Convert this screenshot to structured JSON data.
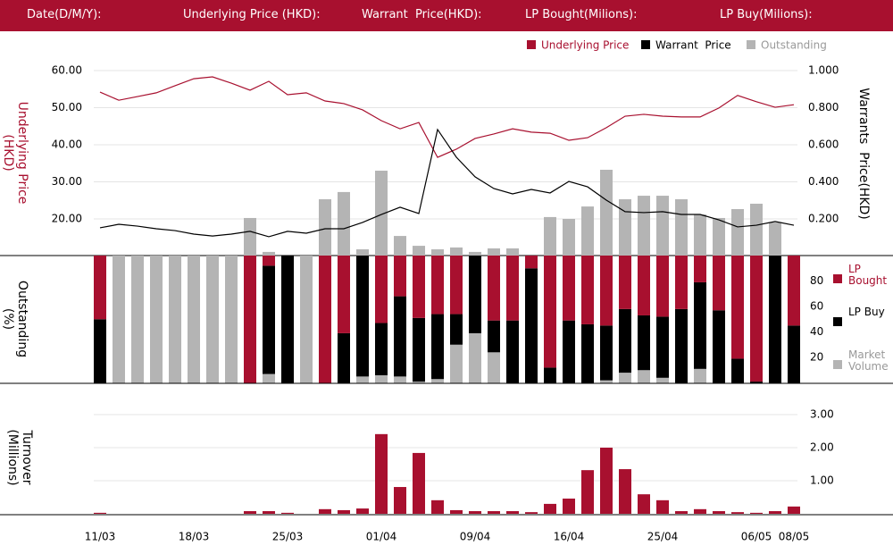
{
  "header": {
    "fields": [
      "Date(D/M/Y):",
      "Underlying Price (HKD):",
      "Warrant  Price(HKD):",
      "LP Bought(Milions):",
      "LP Buy(Milions):"
    ]
  },
  "chart_data": [
    {
      "type": "line",
      "y_title": "Underlying Price (HKD)",
      "y2_title": "Warrants  Price(HKD)",
      "ylim": [
        10,
        64.5
      ],
      "yticks": [
        {
          "value": 20,
          "label": "20.00"
        },
        {
          "value": 30,
          "label": "30.00"
        },
        {
          "value": 40,
          "label": "40.00"
        },
        {
          "value": 50,
          "label": "50.00"
        },
        {
          "value": 60,
          "label": "60.00"
        }
      ],
      "y2lim": [
        0,
        1.09
      ],
      "y2ticks": [
        {
          "value": 0.2,
          "label": "0.200"
        },
        {
          "value": 0.4,
          "label": "0.400"
        },
        {
          "value": 0.6,
          "label": "0.600"
        },
        {
          "value": 0.8,
          "label": "0.800"
        },
        {
          "value": 1,
          "label": "1.000"
        }
      ],
      "grid": true,
      "legend": "top-right",
      "series": [
        {
          "name": "Underlying Price",
          "color": "#a8102f",
          "values": [
            54.2,
            52.0,
            53.0,
            54.0,
            55.9,
            57.8,
            58.3,
            56.6,
            54.7,
            57.1,
            53.5,
            54.0,
            51.8,
            51.1,
            49.4,
            46.5,
            44.3,
            46.0,
            36.6,
            38.8,
            41.7,
            42.9,
            44.3,
            43.4,
            43.1,
            41.2,
            41.9,
            44.6,
            47.7,
            48.2,
            47.7,
            47.5,
            47.5,
            49.9,
            53.3,
            51.6,
            50.1,
            50.8
          ]
        },
        {
          "name": "Warrant  Price",
          "color": "#000000",
          "axis": "y2",
          "values": [
            0.152,
            0.171,
            0.161,
            0.147,
            0.137,
            0.118,
            0.108,
            0.118,
            0.133,
            0.104,
            0.133,
            0.123,
            0.147,
            0.147,
            0.181,
            0.224,
            0.263,
            0.229,
            0.682,
            0.533,
            0.427,
            0.364,
            0.335,
            0.359,
            0.34,
            0.402,
            0.373,
            0.301,
            0.239,
            0.234,
            0.239,
            0.224,
            0.224,
            0.195,
            0.157,
            0.166,
            0.186,
            0.166
          ]
        },
        {
          "name": "Outstanding",
          "color": "#b4b4b4",
          "type": "bar",
          "axis": "y2",
          "values": [
            null,
            null,
            null,
            null,
            null,
            null,
            null,
            null,
            0.205,
            0.022,
            null,
            null,
            0.306,
            0.345,
            0.036,
            0.46,
            0.108,
            0.055,
            0.036,
            0.046,
            0.022,
            0.041,
            0.041,
            null,
            0.21,
            0.2,
            0.267,
            0.465,
            0.306,
            0.325,
            0.325,
            0.306,
            0.224,
            0.205,
            0.253,
            0.282,
            0.181,
            null
          ]
        }
      ]
    },
    {
      "type": "bar",
      "stacked": true,
      "y_title": "Outstanding (%)",
      "ylim": [
        0,
        100
      ],
      "yticks": [
        20,
        40,
        60,
        80
      ],
      "yaxis_position": "right",
      "legend": "right",
      "series": [
        {
          "name": "LP Bought",
          "color": "#a8102f",
          "values": [
            50,
            0,
            0,
            0,
            0,
            0,
            0,
            0,
            100,
            8,
            0,
            0,
            100,
            61,
            0,
            53,
            32,
            49,
            46,
            46,
            0,
            51,
            51,
            10,
            88,
            51,
            54,
            55,
            42,
            47,
            48,
            42,
            21,
            43,
            81,
            99,
            0,
            55
          ]
        },
        {
          "name": "LP Buy",
          "color": "#000000",
          "values": [
            50,
            0,
            0,
            0,
            0,
            0,
            0,
            0,
            0,
            85,
            100,
            0,
            0,
            39,
            95,
            41,
            63,
            50,
            51,
            24,
            61,
            25,
            49,
            90,
            12,
            49,
            46,
            43,
            50,
            43,
            48,
            58,
            68,
            57,
            19,
            1,
            100,
            45
          ]
        },
        {
          "name": "Market Volume",
          "color": "#b4b4b4",
          "values": [
            0,
            100,
            100,
            100,
            100,
            100,
            100,
            100,
            0,
            7,
            0,
            100,
            0,
            0,
            5,
            6,
            5,
            1,
            3,
            30,
            39,
            24,
            0,
            0,
            0,
            0,
            0,
            2,
            8,
            10,
            4,
            0,
            11,
            0,
            0,
            0,
            0,
            0
          ]
        }
      ]
    },
    {
      "type": "bar",
      "y_title": "Turnover (Millions)",
      "ylim": [
        0,
        3.4
      ],
      "yticks": [
        {
          "value": 1,
          "label": "1.00"
        },
        {
          "value": 2,
          "label": "2.00"
        },
        {
          "value": 3,
          "label": "3.00"
        }
      ],
      "yaxis_position": "right",
      "grid": true,
      "categories": [
        "11/03",
        null,
        null,
        null,
        null,
        "18/03",
        null,
        null,
        null,
        null,
        "25/03",
        null,
        null,
        null,
        null,
        "01/04",
        null,
        null,
        null,
        null,
        "09/04",
        null,
        null,
        null,
        null,
        "16/04",
        null,
        null,
        null,
        null,
        "25/04",
        null,
        null,
        null,
        null,
        "06/05",
        null,
        "08/05"
      ],
      "series": [
        {
          "color": "#a8102f",
          "values": [
            0.03,
            0,
            0,
            0,
            0,
            0,
            0,
            0,
            0.08,
            0.08,
            0.03,
            0,
            0.14,
            0.11,
            0.16,
            2.41,
            0.81,
            1.84,
            0.41,
            0.11,
            0.08,
            0.08,
            0.08,
            0.05,
            0.3,
            0.46,
            1.32,
            2.0,
            1.35,
            0.59,
            0.41,
            0.08,
            0.14,
            0.08,
            0.05,
            0.03,
            0.08,
            0.22
          ]
        }
      ]
    }
  ]
}
